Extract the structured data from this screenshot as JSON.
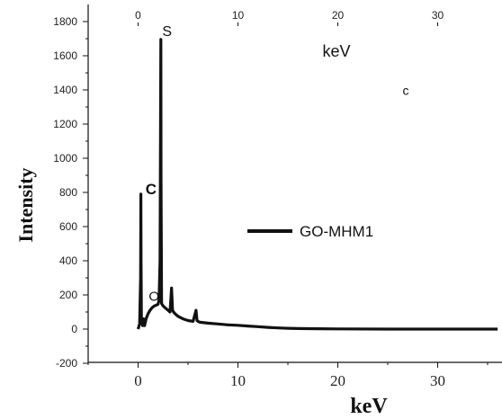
{
  "chart_data": {
    "type": "line",
    "xlabel": "keV",
    "ylabel": "Intensity",
    "inner_xlabel": "keV",
    "xlim": [
      -4.5,
      36.5
    ],
    "ylim": [
      -200,
      1850
    ],
    "x_ticks": [
      0,
      10,
      20,
      30
    ],
    "y_ticks": [
      -200,
      0,
      200,
      400,
      600,
      800,
      1000,
      1200,
      1400,
      1600,
      1800
    ],
    "top_x_ticks": [
      0,
      10,
      20,
      30
    ],
    "grid": false,
    "legend_position": "center-right",
    "series": [
      {
        "name": "GO-MHM1",
        "color": "#111111",
        "x": [
          0,
          0.15,
          0.25,
          0.28,
          0.3,
          0.33,
          0.38,
          0.45,
          0.55,
          0.65,
          0.8,
          1.0,
          1.2,
          1.4,
          1.6,
          1.8,
          2.0,
          2.1,
          2.2,
          2.28,
          2.3,
          2.35,
          2.45,
          2.6,
          2.8,
          3.0,
          3.2,
          3.35,
          3.45,
          3.55,
          3.7,
          4.0,
          4.5,
          5.0,
          5.5,
          5.8,
          5.9,
          6.0,
          6.2,
          7,
          8,
          9,
          10,
          11,
          12,
          13,
          14,
          15,
          16,
          18,
          20,
          25,
          30,
          36
        ],
        "y": [
          0,
          30,
          300,
          790,
          400,
          60,
          40,
          20,
          60,
          20,
          60,
          90,
          110,
          125,
          135,
          140,
          145,
          170,
          400,
          1695,
          900,
          150,
          140,
          130,
          120,
          110,
          100,
          240,
          110,
          100,
          90,
          75,
          60,
          50,
          45,
          110,
          50,
          45,
          40,
          35,
          30,
          25,
          22,
          18,
          14,
          10,
          7,
          5,
          3,
          2,
          1,
          0,
          0,
          0
        ]
      }
    ],
    "annotations": [
      {
        "text": "S",
        "x": 2.9,
        "y": 1715
      },
      {
        "text": "C",
        "x": 1.3,
        "y": 790
      },
      {
        "text": "O",
        "x": 1.6,
        "y": 165
      },
      {
        "text": "c",
        "x": 26.8,
        "y": 1370
      }
    ]
  }
}
